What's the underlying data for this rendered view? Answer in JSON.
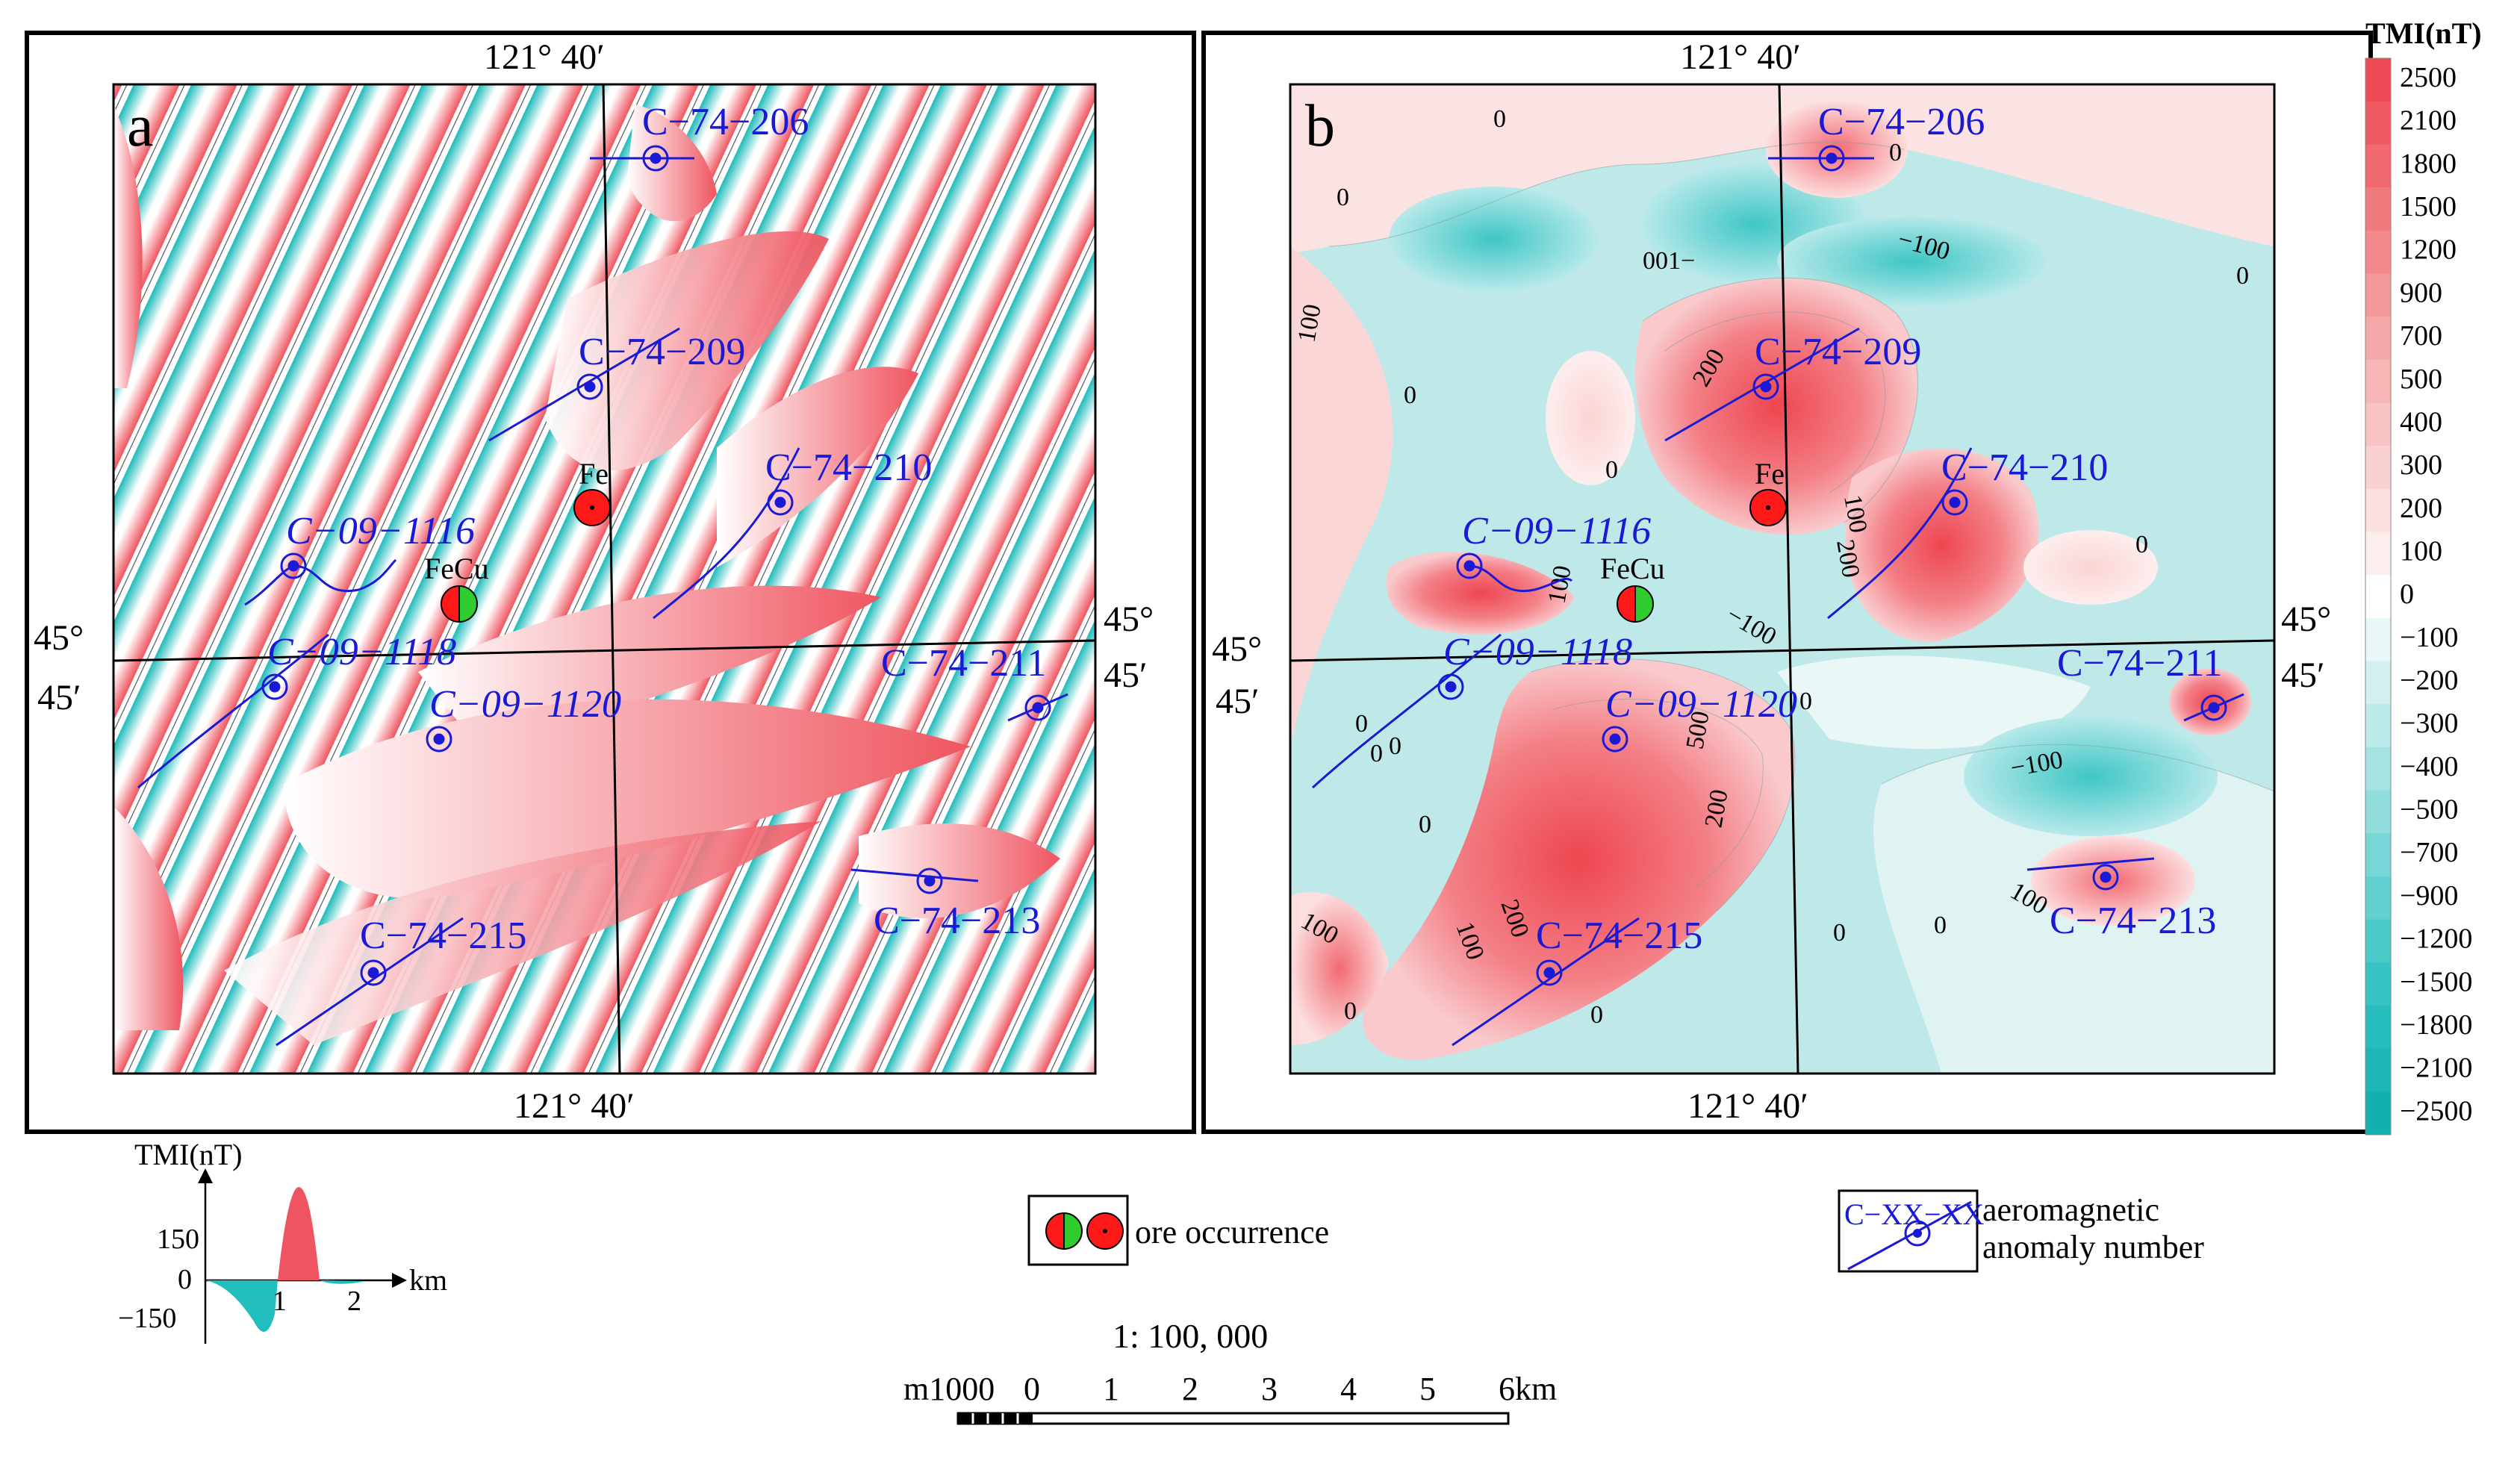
{
  "panels": {
    "a": {
      "label": "a",
      "top_lon": "121° 40′",
      "bottom_lon": "121° 40′",
      "left_lat_deg": "45°",
      "left_lat_min": "45′",
      "right_lat_deg": "45°",
      "right_lat_min": "45′"
    },
    "b": {
      "label": "b",
      "top_lon": "121° 40′",
      "bottom_lon": "121° 40′",
      "left_lat_deg": "45°",
      "left_lat_min": "45′",
      "right_lat_deg": "45°",
      "right_lat_min": "45′"
    }
  },
  "anomalies": {
    "c74_206": "C−74−206",
    "c74_209": "C−74−209",
    "c74_210": "C−74−210",
    "c09_1116": "C−09−1116",
    "c09_1118": "C−09−1118",
    "c09_1120": "C−09−1120",
    "c74_211": "C−74−211",
    "c74_213": "C−74−213",
    "c74_215": "C−74−215"
  },
  "ore": {
    "fe": "Fe",
    "fecu": "FeCu"
  },
  "contours_b": {
    "z0": "0",
    "m100": "−100",
    "m100_flip": "001−",
    "p100": "100",
    "p200": "200",
    "p500": "500",
    "p100_flip": "100"
  },
  "colorbar": {
    "title": "TMI(nT)",
    "ticks": [
      "2500",
      "2100",
      "1800",
      "1500",
      "1200",
      "900",
      "700",
      "500",
      "400",
      "300",
      "200",
      "100",
      "0",
      "−100",
      "−200",
      "−300",
      "−400",
      "−500",
      "−700",
      "−900",
      "−1200",
      "−1500",
      "−1800",
      "−2100",
      "−2500"
    ],
    "colors": [
      "#ee4a55",
      "#ef5a62",
      "#f06a70",
      "#f17a7e",
      "#f3898c",
      "#f4989a",
      "#f6a7a8",
      "#f7b5b5",
      "#f9c3c3",
      "#fad1d1",
      "#fcdfdf",
      "#fdeeee",
      "#ffffff",
      "#e8f7f7",
      "#d2f0f0",
      "#bbeaea",
      "#a5e3e3",
      "#8fdddd",
      "#78d6d6",
      "#62d0d0",
      "#4bc9c9",
      "#35c3c3",
      "#27bdbd",
      "#1db6b6",
      "#14b0b0"
    ]
  },
  "profile_legend": {
    "title": "TMI(nT)",
    "y_top": "150",
    "y_zero": "0",
    "y_bottom": "−150",
    "x_unit": "km",
    "x1": "1",
    "x2": "2"
  },
  "legend": {
    "ore_label": "ore occurrence",
    "anomaly_code": "C−XX−XX",
    "anomaly_line1": "aeromagnetic",
    "anomaly_line2": "anomaly number"
  },
  "scalebar": {
    "ratio": "1: 100, 000",
    "left_label": "m1000",
    "ticks": [
      "0",
      "1",
      "2",
      "3",
      "4",
      "5",
      "6km"
    ]
  },
  "colors": {
    "positive": "#ef5560",
    "negative": "#22bdbd",
    "anomaly_blue": "#1a1ad6",
    "ore_red": "#ff1a1a",
    "ore_green": "#2ecc2e"
  }
}
